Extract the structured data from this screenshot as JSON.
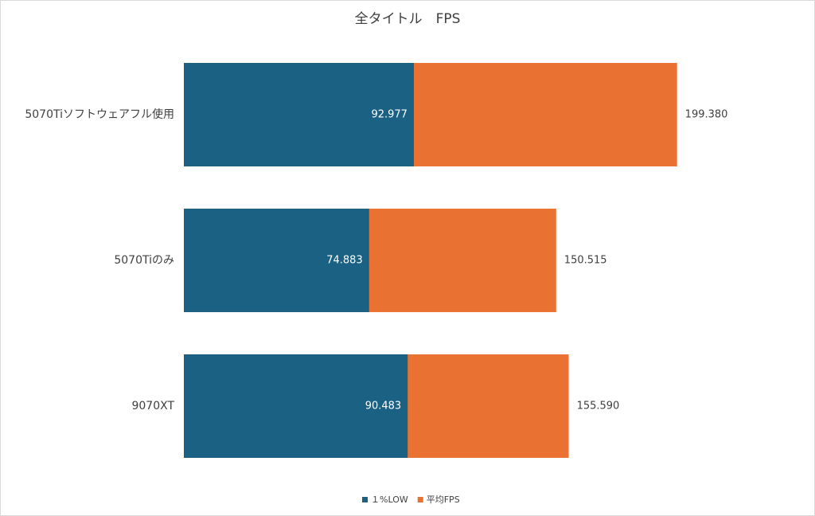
{
  "chart_data": {
    "type": "bar",
    "orientation": "horizontal",
    "overlap": true,
    "title": "全タイトル　FPS",
    "categories": [
      "5070Tiソフトウェアフル使用",
      "5070Tiのみ",
      "9070XT"
    ],
    "series": [
      {
        "name": "１%LOW",
        "color": "#1a6183",
        "values": [
          92.977,
          74.883,
          90.483
        ]
      },
      {
        "name": "平均FPS",
        "color": "#e97132",
        "values": [
          199.38,
          150.515,
          155.59
        ],
        "value_labels": [
          "199.380",
          "150.515",
          "155.590"
        ]
      }
    ],
    "xlim": [
      0,
      250
    ],
    "legend": "bottom"
  }
}
